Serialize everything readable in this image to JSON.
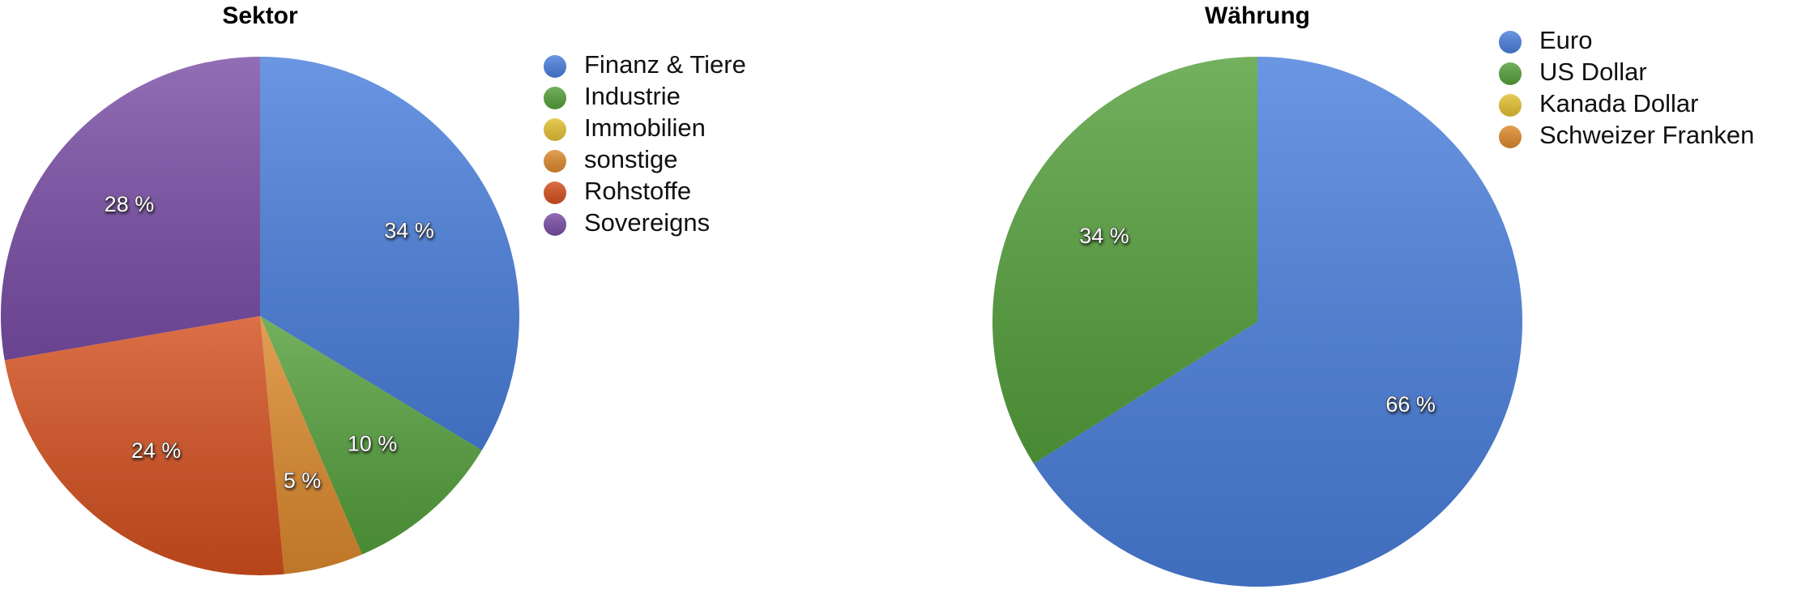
{
  "chart_data": [
    {
      "type": "pie",
      "title": "Sektor",
      "categories": [
        "Finanz & Tiere",
        "Industrie",
        "Immobilien",
        "sonstige",
        "Rohstoffe",
        "Sovereigns"
      ],
      "values": [
        34,
        10,
        0,
        5,
        24,
        28
      ],
      "value_labels": [
        "34 %",
        "10 %",
        null,
        "5 %",
        "24 %",
        "28 %"
      ],
      "colors": [
        "#4a7fdc",
        "#55a03c",
        "#e3c033",
        "#dd8a2e",
        "#d4501f",
        "#7a4ea6"
      ],
      "legend": "right"
    },
    {
      "type": "pie",
      "title": "Währung",
      "categories": [
        "Euro",
        "US Dollar",
        "Kanada Dollar",
        "Schweizer Franken"
      ],
      "values": [
        66,
        34,
        0,
        0
      ],
      "value_labels": [
        "66 %",
        "34 %",
        null,
        null
      ],
      "colors": [
        "#4a7fdc",
        "#55a03c",
        "#e3c033",
        "#dd8a2e"
      ],
      "legend": "right"
    }
  ]
}
